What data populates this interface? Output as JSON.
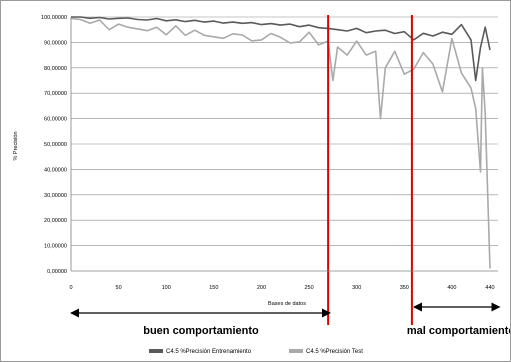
{
  "chart_data": {
    "type": "line",
    "title": "",
    "xlabel": "Bases de datos",
    "ylabel": "% Precisión",
    "xlim": [
      0,
      440
    ],
    "ylim": [
      0,
      100
    ],
    "x_ticks": [
      0,
      50,
      100,
      150,
      200,
      250,
      300,
      350,
      400,
      440
    ],
    "y_ticks": [
      "0,00000",
      "10,00000",
      "20,00000",
      "30,00000",
      "40,00000",
      "50,00000",
      "60,00000",
      "70,00000",
      "80,00000",
      "90,00000",
      "100,00000"
    ],
    "grid": true,
    "legend_position": "bottom",
    "colors": {
      "train": "#5a5a5a",
      "test": "#a9a9a9",
      "marker": "#e00000"
    },
    "series": [
      {
        "name": "C4.5 %Precisión Entrenamiento",
        "x": [
          0,
          10,
          20,
          30,
          40,
          50,
          60,
          70,
          80,
          90,
          100,
          110,
          120,
          130,
          140,
          150,
          160,
          170,
          180,
          190,
          200,
          210,
          220,
          230,
          240,
          250,
          260,
          270,
          280,
          290,
          300,
          310,
          320,
          330,
          340,
          350,
          360,
          370,
          380,
          390,
          400,
          410,
          420,
          425,
          430,
          435,
          440
        ],
        "values": [
          100,
          100,
          99.5,
          99.8,
          99.2,
          99.5,
          99.6,
          99,
          98.8,
          99.4,
          98.5,
          98.9,
          98.2,
          98.7,
          98,
          98.4,
          97.6,
          98,
          97.5,
          97.8,
          97,
          97.4,
          96.8,
          97.2,
          96.2,
          96.8,
          95.8,
          95.5,
          95,
          94.5,
          95.5,
          93.8,
          94.5,
          94.8,
          93.5,
          94.2,
          91,
          93.6,
          92.5,
          94,
          93.2,
          97,
          91,
          75,
          88,
          96,
          87
        ]
      },
      {
        "name": "C4.5 %Precisión Test",
        "x": [
          0,
          10,
          20,
          30,
          40,
          50,
          60,
          70,
          80,
          90,
          100,
          110,
          120,
          130,
          140,
          150,
          160,
          170,
          180,
          190,
          200,
          210,
          220,
          230,
          240,
          250,
          260,
          270,
          275,
          280,
          290,
          300,
          310,
          320,
          325,
          330,
          340,
          350,
          360,
          370,
          380,
          390,
          400,
          410,
          420,
          425,
          430,
          432,
          435,
          440
        ],
        "values": [
          99.5,
          99,
          97.5,
          98.8,
          95,
          97.2,
          96,
          95.3,
          94.6,
          96,
          93,
          96.5,
          92.8,
          94.8,
          92.8,
          92.2,
          91.6,
          93.4,
          92.9,
          90.6,
          91,
          93.5,
          92,
          89.8,
          90.2,
          94,
          89,
          90.5,
          75,
          88.2,
          85,
          90.5,
          85,
          86.5,
          60,
          80,
          86.5,
          77.5,
          79.5,
          86,
          81.5,
          70.5,
          91.5,
          78,
          72,
          64,
          39,
          80,
          62,
          1
        ]
      }
    ],
    "annotations": [
      {
        "text": "buen comportamiento",
        "arrow_from_x": 0,
        "arrow_to_x": 272
      },
      {
        "text": "mal comportamiento",
        "arrow_from_x": 360,
        "arrow_to_x": 450
      }
    ],
    "vertical_markers_x": [
      270,
      358
    ]
  }
}
